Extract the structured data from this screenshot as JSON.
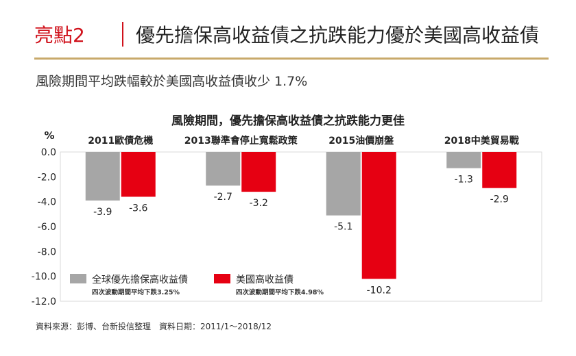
{
  "header": {
    "tag": "亮點2",
    "title": "優先擔保高收益債之抗跌能力優於美國高收益債"
  },
  "subtitle": "風險期間平均跌幅較於美國高收益債收少 1.7%",
  "chart_data": {
    "type": "bar",
    "title": "風險期間，優先擔保高收益債之抗跌能力更佳",
    "ylabel": "%",
    "xlabel": "",
    "ylim": [
      -12,
      0
    ],
    "yticks": [
      "0.0",
      "-2.0",
      "-4.0",
      "-6.0",
      "-8.0",
      "-10.0",
      "-12.0"
    ],
    "grid": false,
    "legend_position": "bottom-left",
    "categories": [
      "2011歐債危機",
      "2013聯準會停止寬鬆政策",
      "2015油價崩盤",
      "2018中美貿易戰"
    ],
    "series": [
      {
        "name": "全球優先擔保高收益債",
        "note": "四次波動期間平均下跌3.25%",
        "color": "#a6a6a6",
        "values": [
          -3.9,
          -2.7,
          -5.1,
          -1.3
        ],
        "labels": [
          "-3.9",
          "-2.7",
          "-5.1",
          "-1.3"
        ]
      },
      {
        "name": "美國高收益債",
        "note": "四次波動期間平均下跌4.98%",
        "color": "#e60012",
        "values": [
          -3.6,
          -3.2,
          -10.2,
          -2.9
        ],
        "labels": [
          "-3.6",
          "-3.2",
          "-10.2",
          "-2.9"
        ]
      }
    ]
  },
  "source": "資料來源：彭博、台新投信整理　資料日期：2011/1～2018/12"
}
